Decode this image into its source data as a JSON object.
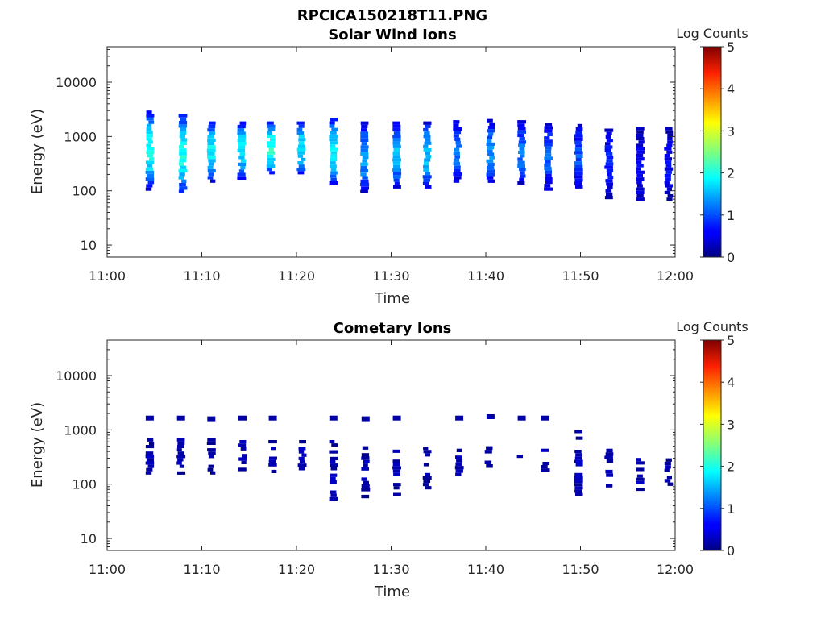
{
  "figure": {
    "title": "RPCICA150218T11.PNG"
  },
  "colorbar": {
    "label": "Log Counts",
    "ticks": [
      "0",
      "1",
      "2",
      "3",
      "4",
      "5"
    ],
    "range": [
      0,
      5
    ],
    "colormap": "jet"
  },
  "chart_data": [
    {
      "type": "heatmap",
      "title": "Solar Wind Ions",
      "xlabel": "Time",
      "ylabel": "Energy (eV)",
      "yscale": "log",
      "ylim": [
        6,
        45000
      ],
      "xlim": [
        "11:00",
        "12:00"
      ],
      "x_ticks": [
        "11:00",
        "11:10",
        "11:20",
        "11:30",
        "11:40",
        "11:50",
        "12:00"
      ],
      "y_ticks": [
        "10",
        "100",
        "1000",
        "10000"
      ],
      "grid": false,
      "sweeps": [
        {
          "t": 4.5,
          "emin": 100,
          "emax": 3000,
          "peak": 1.9
        },
        {
          "t": 8.0,
          "emin": 90,
          "emax": 2600,
          "peak": 2.0
        },
        {
          "t": 11.0,
          "emin": 140,
          "emax": 1900,
          "peak": 1.8
        },
        {
          "t": 14.2,
          "emin": 160,
          "emax": 1900,
          "peak": 1.8
        },
        {
          "t": 17.3,
          "emin": 200,
          "emax": 1900,
          "peak": 2.1
        },
        {
          "t": 20.5,
          "emin": 200,
          "emax": 1900,
          "peak": 1.8
        },
        {
          "t": 23.9,
          "emin": 130,
          "emax": 2200,
          "peak": 1.8
        },
        {
          "t": 27.2,
          "emin": 90,
          "emax": 1900,
          "peak": 1.4
        },
        {
          "t": 30.6,
          "emin": 110,
          "emax": 1900,
          "peak": 1.5
        },
        {
          "t": 33.8,
          "emin": 110,
          "emax": 1900,
          "peak": 1.6
        },
        {
          "t": 37.0,
          "emin": 140,
          "emax": 2000,
          "peak": 1.2
        },
        {
          "t": 40.5,
          "emin": 140,
          "emax": 2100,
          "peak": 1.3
        },
        {
          "t": 43.8,
          "emin": 130,
          "emax": 2000,
          "peak": 1.2
        },
        {
          "t": 46.6,
          "emin": 100,
          "emax": 1800,
          "peak": 1.1
        },
        {
          "t": 49.8,
          "emin": 110,
          "emax": 1700,
          "peak": 1.0
        },
        {
          "t": 53.0,
          "emin": 70,
          "emax": 1400,
          "peak": 0.7
        },
        {
          "t": 56.3,
          "emin": 65,
          "emax": 1500,
          "peak": 0.6
        },
        {
          "t": 59.3,
          "emin": 65,
          "emax": 1500,
          "peak": 0.6
        }
      ]
    },
    {
      "type": "heatmap",
      "title": "Cometary Ions",
      "xlabel": "Time",
      "ylabel": "Energy (eV)",
      "yscale": "log",
      "ylim": [
        6,
        45000
      ],
      "xlim": [
        "11:00",
        "12:00"
      ],
      "x_ticks": [
        "11:00",
        "11:10",
        "11:20",
        "11:30",
        "11:40",
        "11:50",
        "12:00"
      ],
      "y_ticks": [
        "10",
        "100",
        "1000",
        "10000"
      ],
      "grid": false,
      "sweeps": [
        {
          "t": 4.5,
          "emin": 150,
          "emax": 700,
          "peak": 0.2
        },
        {
          "t": 7.8,
          "emin": 130,
          "emax": 700,
          "peak": 0.2
        },
        {
          "t": 11.0,
          "emin": 150,
          "emax": 700,
          "peak": 0.2
        },
        {
          "t": 14.3,
          "emin": 150,
          "emax": 750,
          "peak": 0.2
        },
        {
          "t": 17.5,
          "emin": 160,
          "emax": 650,
          "peak": 0.2
        },
        {
          "t": 20.6,
          "emin": 180,
          "emax": 650,
          "peak": 0.2
        },
        {
          "t": 23.9,
          "emin": 50,
          "emax": 650,
          "peak": 0.2
        },
        {
          "t": 27.3,
          "emin": 55,
          "emax": 500,
          "peak": 0.2
        },
        {
          "t": 30.6,
          "emin": 60,
          "emax": 500,
          "peak": 0.2
        },
        {
          "t": 33.8,
          "emin": 80,
          "emax": 650,
          "peak": 0.2
        },
        {
          "t": 37.2,
          "emin": 140,
          "emax": 450,
          "peak": 0.2
        },
        {
          "t": 40.3,
          "emin": 200,
          "emax": 500,
          "peak": 0.2
        },
        {
          "t": 43.5,
          "emin": 230,
          "emax": 400,
          "peak": 0.2
        },
        {
          "t": 46.3,
          "emin": 170,
          "emax": 450,
          "peak": 0.2
        },
        {
          "t": 49.8,
          "emin": 60,
          "emax": 1000,
          "peak": 0.2
        },
        {
          "t": 53.0,
          "emin": 75,
          "emax": 450,
          "peak": 0.2
        },
        {
          "t": 56.3,
          "emin": 75,
          "emax": 350,
          "peak": 0.2
        },
        {
          "t": 59.3,
          "emin": 80,
          "emax": 300,
          "peak": 0.2
        }
      ],
      "extra_rows": [
        {
          "t": 4.5,
          "energy": 1650
        },
        {
          "t": 7.8,
          "energy": 1650
        },
        {
          "t": 11.0,
          "energy": 1600
        },
        {
          "t": 14.3,
          "energy": 1650
        },
        {
          "t": 17.5,
          "energy": 1650
        },
        {
          "t": 23.9,
          "energy": 1650
        },
        {
          "t": 27.3,
          "energy": 1600
        },
        {
          "t": 30.6,
          "energy": 1650
        },
        {
          "t": 37.2,
          "energy": 1650
        },
        {
          "t": 40.5,
          "energy": 1750
        },
        {
          "t": 43.8,
          "energy": 1650
        },
        {
          "t": 46.3,
          "energy": 1650
        }
      ]
    }
  ]
}
